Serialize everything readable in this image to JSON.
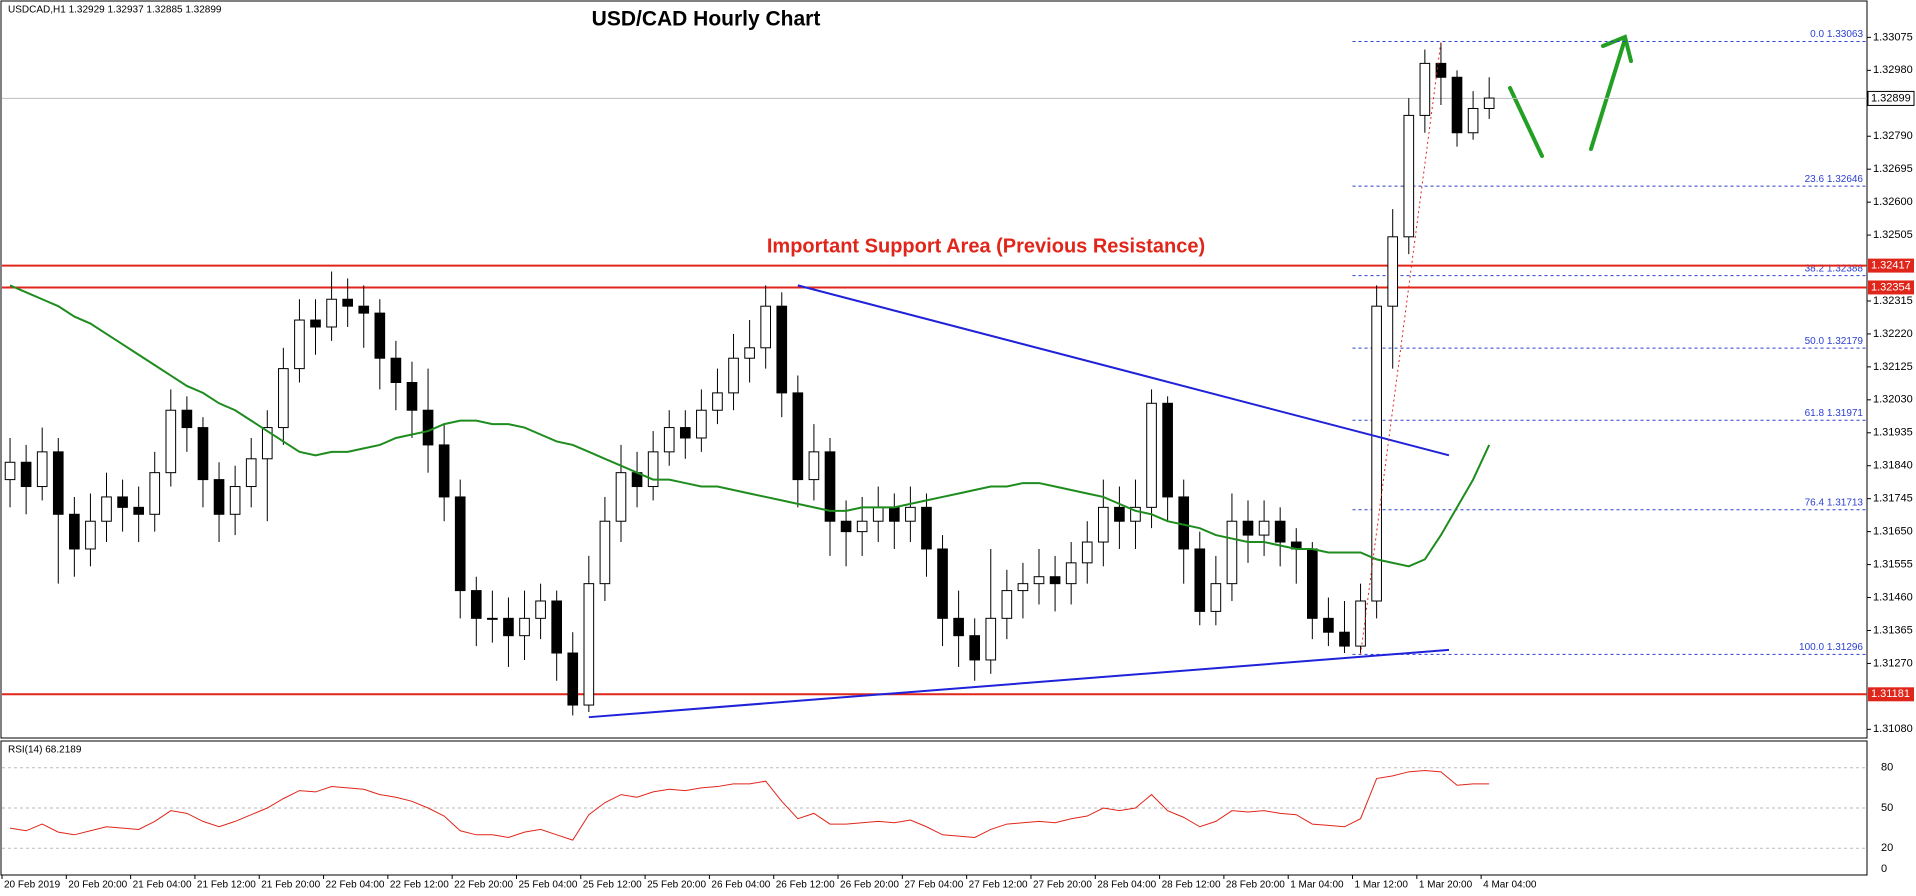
{
  "chart_data": {
    "type": "candlestick",
    "header": "USDCAD,H1  1.32929 1.32937 1.32885 1.32899",
    "title": "USD/CAD Hourly Chart",
    "annotation": "Important Support Area (Previous Resistance)",
    "xtick_labels": [
      "20 Feb 2019",
      "20 Feb 20:00",
      "21 Feb 04:00",
      "21 Feb 12:00",
      "21 Feb 20:00",
      "22 Feb 04:00",
      "22 Feb 12:00",
      "22 Feb 20:00",
      "25 Feb 04:00",
      "25 Feb 12:00",
      "25 Feb 20:00",
      "26 Feb 04:00",
      "26 Feb 12:00",
      "26 Feb 20:00",
      "27 Feb 04:00",
      "27 Feb 12:00",
      "27 Feb 20:00",
      "28 Feb 04:00",
      "28 Feb 12:00",
      "28 Feb 20:00",
      "1 Mar 04:00",
      "1 Mar 12:00",
      "1 Mar 20:00",
      "4 Mar 04:00"
    ],
    "open": [
      1.318,
      1.3185,
      1.3178,
      1.3188,
      1.317,
      1.316,
      1.3168,
      1.3175,
      1.3172,
      1.317,
      1.3182,
      1.32,
      1.3195,
      1.318,
      1.317,
      1.3178,
      1.3186,
      1.3195,
      1.3212,
      1.3226,
      1.3224,
      1.3232,
      1.323,
      1.3228,
      1.3215,
      1.3208,
      1.32,
      1.319,
      1.3175,
      1.3148,
      1.314,
      1.314,
      1.3135,
      1.314,
      1.3145,
      1.313,
      1.3115,
      1.315,
      1.3168,
      1.3182,
      1.3178,
      1.3188,
      1.3195,
      1.3192,
      1.32,
      1.3205,
      1.3215,
      1.3218,
      1.323,
      1.3205,
      1.318,
      1.3188,
      1.3168,
      1.3165,
      1.3168,
      1.3172,
      1.3168,
      1.3172,
      1.316,
      1.314,
      1.3135,
      1.3128,
      1.314,
      1.3148,
      1.315,
      1.3152,
      1.315,
      1.3156,
      1.3162,
      1.3172,
      1.3168,
      1.3172,
      1.3202,
      1.3175,
      1.316,
      1.3142,
      1.315,
      1.3168,
      1.3164,
      1.3168,
      1.3162,
      1.316,
      1.314,
      1.3136,
      1.3132,
      1.3145,
      1.323,
      1.325,
      1.3285,
      1.33,
      1.3296,
      1.328,
      1.3287
    ],
    "high": [
      1.3192,
      1.319,
      1.3195,
      1.3192,
      1.3175,
      1.3176,
      1.3182,
      1.318,
      1.3178,
      1.3188,
      1.3206,
      1.3204,
      1.3198,
      1.3185,
      1.3184,
      1.3192,
      1.32,
      1.3218,
      1.3232,
      1.3232,
      1.324,
      1.3238,
      1.3236,
      1.3232,
      1.322,
      1.3214,
      1.3212,
      1.3196,
      1.318,
      1.3152,
      1.3148,
      1.3146,
      1.3148,
      1.315,
      1.3148,
      1.3136,
      1.3158,
      1.3175,
      1.319,
      1.3188,
      1.3194,
      1.32,
      1.32,
      1.3206,
      1.3212,
      1.3222,
      1.3226,
      1.3236,
      1.3234,
      1.321,
      1.3196,
      1.3192,
      1.3174,
      1.3175,
      1.3178,
      1.3176,
      1.3178,
      1.3176,
      1.3164,
      1.3148,
      1.314,
      1.316,
      1.3154,
      1.3156,
      1.316,
      1.3158,
      1.3162,
      1.3168,
      1.318,
      1.3178,
      1.318,
      1.3206,
      1.3204,
      1.318,
      1.3165,
      1.3158,
      1.3176,
      1.3174,
      1.3174,
      1.3172,
      1.3166,
      1.3162,
      1.3146,
      1.3145,
      1.315,
      1.3236,
      1.3258,
      1.329,
      1.3304,
      1.3306,
      1.3298,
      1.3292,
      1.3296
    ],
    "low": [
      1.3172,
      1.317,
      1.3174,
      1.315,
      1.3152,
      1.3155,
      1.3162,
      1.3165,
      1.3162,
      1.3165,
      1.3178,
      1.3188,
      1.3172,
      1.3162,
      1.3164,
      1.3172,
      1.3168,
      1.319,
      1.3208,
      1.3216,
      1.322,
      1.3224,
      1.3218,
      1.3206,
      1.32,
      1.3192,
      1.3182,
      1.3168,
      1.314,
      1.3132,
      1.3133,
      1.3126,
      1.3128,
      1.3134,
      1.3122,
      1.3112,
      1.3113,
      1.3145,
      1.3162,
      1.3172,
      1.3174,
      1.3184,
      1.3186,
      1.3188,
      1.3196,
      1.32,
      1.3208,
      1.3212,
      1.3198,
      1.3172,
      1.3174,
      1.3158,
      1.3155,
      1.3158,
      1.3162,
      1.316,
      1.3162,
      1.3152,
      1.3132,
      1.3126,
      1.3122,
      1.3124,
      1.3134,
      1.314,
      1.3144,
      1.3142,
      1.3144,
      1.315,
      1.3155,
      1.316,
      1.316,
      1.3166,
      1.3168,
      1.315,
      1.3138,
      1.3138,
      1.3145,
      1.3156,
      1.3158,
      1.3155,
      1.315,
      1.3134,
      1.3132,
      1.313,
      1.313,
      1.314,
      1.3212,
      1.3245,
      1.328,
      1.3288,
      1.3276,
      1.3278,
      1.3284
    ],
    "close": [
      1.3185,
      1.3178,
      1.3188,
      1.317,
      1.316,
      1.3168,
      1.3175,
      1.3172,
      1.317,
      1.3182,
      1.32,
      1.3195,
      1.318,
      1.317,
      1.3178,
      1.3186,
      1.3195,
      1.3212,
      1.3226,
      1.3224,
      1.3232,
      1.323,
      1.3228,
      1.3215,
      1.3208,
      1.32,
      1.319,
      1.3175,
      1.3148,
      1.314,
      1.314,
      1.3135,
      1.314,
      1.3145,
      1.313,
      1.3115,
      1.315,
      1.3168,
      1.3182,
      1.3178,
      1.3188,
      1.3195,
      1.3192,
      1.32,
      1.3205,
      1.3215,
      1.3218,
      1.323,
      1.3205,
      1.318,
      1.3188,
      1.3168,
      1.3165,
      1.3168,
      1.3172,
      1.3168,
      1.3172,
      1.316,
      1.314,
      1.3135,
      1.3128,
      1.314,
      1.3148,
      1.315,
      1.3152,
      1.315,
      1.3156,
      1.3162,
      1.3172,
      1.3168,
      1.3172,
      1.3202,
      1.3175,
      1.316,
      1.3142,
      1.315,
      1.3168,
      1.3164,
      1.3168,
      1.3162,
      1.316,
      1.314,
      1.3136,
      1.3132,
      1.3145,
      1.323,
      1.325,
      1.3285,
      1.33,
      1.3296,
      1.328,
      1.3287,
      1.329
    ],
    "ma": {
      "color": "#1e8c1e",
      "values": [
        1.3236,
        1.3234,
        1.3232,
        1.323,
        1.3227,
        1.3225,
        1.3222,
        1.3219,
        1.3216,
        1.3213,
        1.321,
        1.3207,
        1.3205,
        1.3202,
        1.32,
        1.3197,
        1.3194,
        1.3191,
        1.3188,
        1.3187,
        1.3188,
        1.3188,
        1.3189,
        1.319,
        1.3192,
        1.3193,
        1.3194,
        1.3196,
        1.3197,
        1.3197,
        1.3196,
        1.3196,
        1.3195,
        1.3193,
        1.3191,
        1.319,
        1.3188,
        1.3186,
        1.3184,
        1.3182,
        1.318,
        1.318,
        1.3179,
        1.3178,
        1.3178,
        1.3177,
        1.3176,
        1.3175,
        1.3174,
        1.3173,
        1.3172,
        1.3171,
        1.3171,
        1.3172,
        1.3172,
        1.3172,
        1.3173,
        1.3174,
        1.3175,
        1.3176,
        1.3177,
        1.3178,
        1.3178,
        1.3179,
        1.3179,
        1.3178,
        1.3177,
        1.3176,
        1.3175,
        1.3173,
        1.3171,
        1.317,
        1.3168,
        1.3167,
        1.3166,
        1.3164,
        1.3163,
        1.3162,
        1.3162,
        1.3161,
        1.316,
        1.316,
        1.3159,
        1.3159,
        1.3159,
        1.3157,
        1.3156,
        1.3155,
        1.3157,
        1.3164,
        1.3172,
        1.318,
        1.319
      ]
    },
    "ylim": [
      1.31055,
      1.33177
    ],
    "yticks": [
      1.33075,
      {
        "value": 1.3298,
        "label": "1.32980"
      },
      {
        "value": 1.3279,
        "label": "1.32790"
      },
      1.32695,
      {
        "value": 1.326,
        "label": "1.32600"
      },
      1.32505,
      1.32315,
      {
        "value": 1.3222,
        "label": "1.32220"
      },
      1.32125,
      {
        "value": 1.3203,
        "label": "1.32030"
      },
      1.31935,
      {
        "value": 1.3184,
        "label": "1.31840"
      },
      1.31745,
      {
        "value": 1.3165,
        "label": "1.31650"
      },
      1.31555,
      {
        "value": 1.3146,
        "label": "1.31460"
      },
      1.31365,
      {
        "value": 1.3127,
        "label": "1.31270"
      },
      {
        "value": 1.3108,
        "label": "1.31080"
      }
    ],
    "levels": {
      "color": "#e0261b",
      "values": [
        1.32417,
        1.32354,
        1.31181
      ]
    },
    "last_price": 1.32899,
    "fib": {
      "color": "#2a3fd0",
      "x": [
        84,
        89
      ],
      "levels": [
        {
          "value": 1.33063,
          "label": "0.0 1.33063"
        },
        {
          "value": 1.32646,
          "label": "23.6 1.32646"
        },
        {
          "value": 1.32388,
          "label": "38.2 1.32388"
        },
        {
          "value": 1.32179,
          "label": "50.0 1.32179"
        },
        {
          "value": 1.31971,
          "label": "61.8 1.31971"
        },
        {
          "value": 1.31713,
          "label": "76.4 1.31713"
        },
        {
          "value": 1.31296,
          "label": "100.0 1.31296"
        }
      ]
    },
    "trendlines": {
      "color": "#1f22d8",
      "lines": [
        {
          "x": [
            49,
            89.5
          ],
          "y": [
            1.3236,
            1.3187
          ]
        },
        {
          "x": [
            36,
            89.5
          ],
          "y": [
            1.31115,
            1.31309
          ]
        }
      ]
    },
    "rsi": {
      "label": "RSI(14) 68.2189",
      "color": "#e0261b",
      "ylim": [
        0,
        100
      ],
      "yticks": [
        0,
        20,
        50,
        80
      ],
      "values": [
        35,
        33,
        38,
        32,
        30,
        33,
        36,
        35,
        34,
        40,
        48,
        46,
        40,
        36,
        40,
        45,
        50,
        57,
        63,
        62,
        66,
        65,
        64,
        60,
        58,
        55,
        50,
        44,
        33,
        30,
        30,
        28,
        32,
        34,
        30,
        26,
        45,
        54,
        60,
        58,
        62,
        64,
        63,
        65,
        66,
        68,
        68,
        70,
        55,
        42,
        46,
        38,
        38,
        39,
        40,
        39,
        41,
        36,
        30,
        29,
        28,
        34,
        38,
        39,
        40,
        39,
        42,
        44,
        50,
        48,
        50,
        60,
        48,
        43,
        36,
        40,
        48,
        47,
        48,
        46,
        45,
        38,
        37,
        36,
        42,
        72,
        74,
        77,
        78,
        77,
        67,
        68,
        68
      ]
    }
  }
}
